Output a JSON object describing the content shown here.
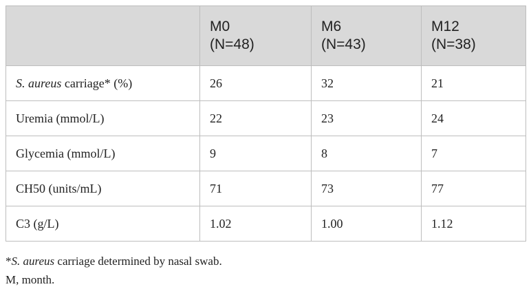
{
  "table": {
    "header": [
      [],
      [
        "M0",
        "(N=48)"
      ],
      [
        "M6",
        "(N=43)"
      ],
      [
        "M12",
        "(N=38)"
      ]
    ],
    "rows": [
      [
        [
          {
            "text": "S. aureus",
            "italic": true
          },
          {
            "text": " carriage* (%)",
            "italic": false
          }
        ],
        "26",
        "32",
        "21"
      ],
      [
        [
          {
            "text": "Uremia (mmol/L)",
            "italic": false
          }
        ],
        "22",
        "23",
        "24"
      ],
      [
        [
          {
            "text": "Glycemia (mmol/L)",
            "italic": false
          }
        ],
        "9",
        "8",
        "7"
      ],
      [
        [
          {
            "text": "CH50 (units/mL)",
            "italic": false
          }
        ],
        "71",
        "73",
        "77"
      ],
      [
        [
          {
            "text": "C3 (g/L)",
            "italic": false
          }
        ],
        "1.02",
        "1.00",
        "1.12"
      ]
    ]
  },
  "footnotes": [
    [
      {
        "text": "*",
        "italic": false
      },
      {
        "text": "S. aureus",
        "italic": true
      },
      {
        "text": " carriage determined by nasal swab.",
        "italic": false
      }
    ],
    [
      {
        "text": "M, month.",
        "italic": false
      }
    ]
  ]
}
